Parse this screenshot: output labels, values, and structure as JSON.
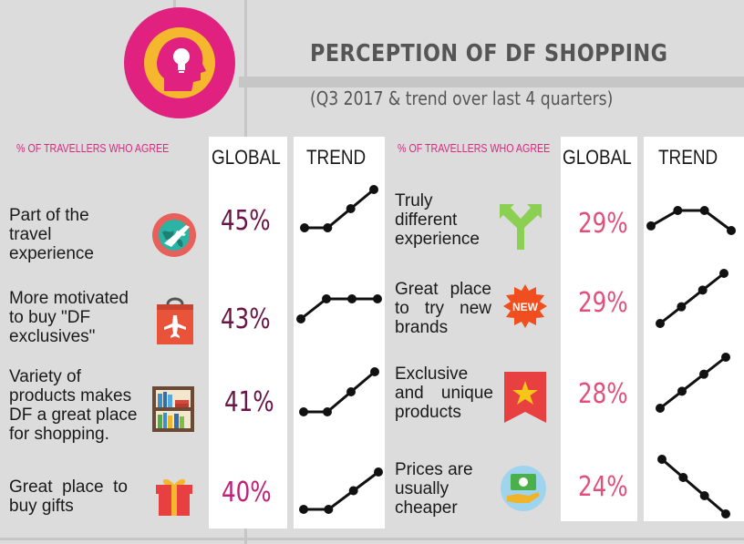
{
  "title": "PERCEPTION OF DF SHOPPING",
  "subtitle": "(Q3 2017 & trend over last 4 quarters)",
  "colors": {
    "logo_ring": "#e0217f",
    "logo_inner": "#f5b72e",
    "left_pct": "#6b1547",
    "right_pct": "#e0507a",
    "heading": "#d42b7f"
  },
  "left": {
    "heading": "% OF TRAVELLERS WHO AGREE",
    "global_header": "GLOBAL",
    "trend_header": "TREND",
    "rows": [
      {
        "lines": [
          "Part of the",
          "travel",
          "experience"
        ],
        "value": "45%",
        "icon": "globe-plane-icon"
      },
      {
        "lines": [
          "More motivated",
          "to buy \"DF",
          "exclusives\""
        ],
        "value": "43%",
        "icon": "shopping-bag-plane-icon"
      },
      {
        "lines": [
          "Variety of",
          "products makes",
          "DF a great place",
          "for shopping."
        ],
        "value": "41%",
        "icon": "bookshelf-icon"
      },
      {
        "lines": [
          "Great place to",
          "buy gifts"
        ],
        "value": "40%",
        "icon": "gift-icon"
      }
    ]
  },
  "right": {
    "heading": "% OF TRAVELLERS WHO AGREE",
    "global_header": "GLOBAL",
    "trend_header": "TREND",
    "rows": [
      {
        "lines": [
          "Truly",
          "different",
          "experience"
        ],
        "value": "29%",
        "icon": "split-arrow-icon"
      },
      {
        "lines": [
          "Great place",
          "to try new",
          "brands"
        ],
        "value": "29%",
        "icon": "new-badge-icon",
        "badge": "NEW"
      },
      {
        "lines": [
          "Exclusive",
          "and unique",
          "products"
        ],
        "value": "28%",
        "icon": "star-ribbon-icon"
      },
      {
        "lines": [
          "Prices are",
          "usually",
          "cheaper"
        ],
        "value": "24%",
        "icon": "money-hand-icon"
      }
    ]
  },
  "chart_data": {
    "type": "line",
    "note_series": "trend over last 4 quarters (relative, unlabeled)",
    "series": [
      {
        "values": [
          1,
          1,
          2,
          3
        ]
      },
      {
        "values": [
          1,
          2,
          2,
          2
        ]
      },
      {
        "values": [
          1,
          1,
          2,
          3
        ]
      },
      {
        "values": [
          1,
          1,
          2,
          3
        ]
      },
      {
        "values": [
          2,
          3,
          3,
          1.7
        ]
      },
      {
        "values": [
          1,
          2,
          3,
          4
        ]
      },
      {
        "values": [
          1,
          2,
          3,
          4
        ]
      },
      {
        "values": [
          4,
          3,
          2,
          1
        ]
      }
    ]
  }
}
